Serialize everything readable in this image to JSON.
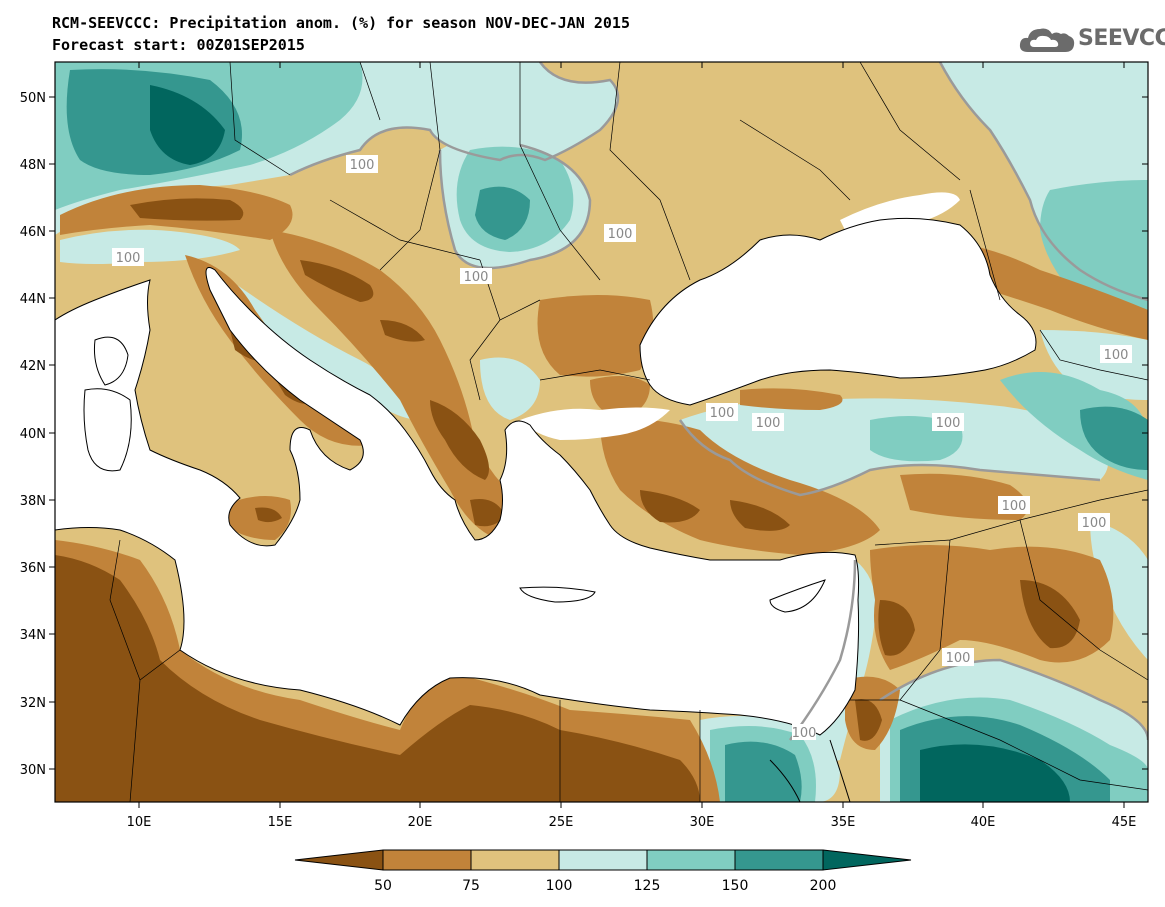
{
  "header": {
    "title_line1": "RCM-SEEVCCC: Precipitation anom. (%) for season NOV-DEC-JAN 2015",
    "title_line2": "Forecast start: 00Z01SEP2015"
  },
  "logo": {
    "text": "SEEVCCC",
    "icon": "cloud-icon"
  },
  "colors": {
    "bin_lt50": "#8a5213",
    "bin_50_75": "#c1833a",
    "bin_75_100": "#dfc27d",
    "bin_100_125": "#c7eae5",
    "bin_125_150": "#80cdc1",
    "bin_150_200": "#35978f",
    "bin_gt200": "#01665e",
    "contour": "#9a9a9a",
    "sea": "#ffffff"
  },
  "map": {
    "lat_ticks": [
      "50N",
      "48N",
      "46N",
      "44N",
      "42N",
      "40N",
      "38N",
      "36N",
      "34N",
      "32N",
      "30N"
    ],
    "lon_ticks": [
      "10E",
      "15E",
      "20E",
      "25E",
      "30E",
      "35E",
      "40E",
      "45E"
    ],
    "contour_labels": [
      "100",
      "100",
      "100",
      "100",
      "100",
      "100",
      "100",
      "100",
      "100",
      "100",
      "100",
      "100"
    ]
  },
  "colorbar": {
    "labels": [
      "50",
      "75",
      "100",
      "125",
      "150",
      "200"
    ]
  }
}
